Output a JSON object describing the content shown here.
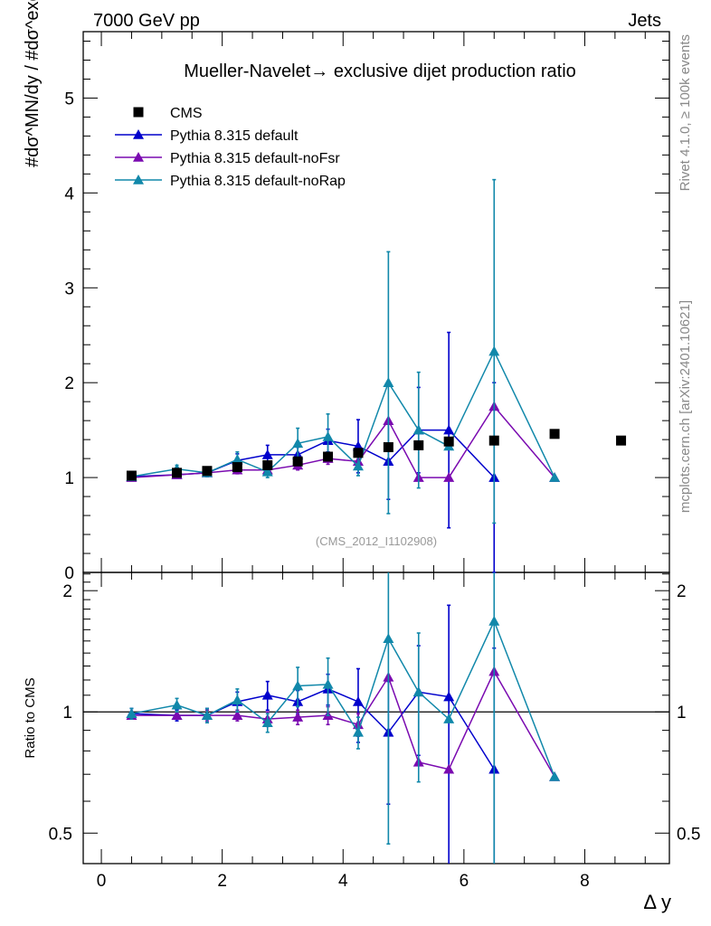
{
  "header": {
    "left_title": "7000 GeV pp",
    "right_title": "Jets"
  },
  "side": {
    "rivet": "Rivet 4.1.0, ≥ 100k events",
    "mcplots": "mcplots.cern.ch [arXiv:2401.10621]"
  },
  "chart_data": {
    "type": "scatter",
    "title": "Mueller-Navelet→ exclusive dijet production ratio",
    "watermark": "(CMS_2012_I1102908)",
    "xlabel": "Δ y",
    "ylabel": "#dσ^MN/dy / #dσ^exc/dy",
    "ratio_ylabel": "Ratio to CMS",
    "xlim": [
      -0.3,
      9.4
    ],
    "ylim": [
      0,
      5.7
    ],
    "ratio_ylim": [
      0.42,
      2.22
    ],
    "x_ticks": [
      0,
      2,
      4,
      6,
      8
    ],
    "x_tick_labels": [
      "0",
      "2",
      "4",
      "6",
      "8"
    ],
    "y_ticks": [
      0,
      1,
      2,
      3,
      4,
      5
    ],
    "y_tick_labels": [
      "0",
      "1",
      "2",
      "3",
      "4",
      "5"
    ],
    "ratio_y_ticks": [
      0.5,
      1,
      2
    ],
    "ratio_y_tick_labels": [
      "0.5",
      "1",
      "2"
    ],
    "legend_position": "top-left",
    "colors": {
      "cms": "#000000",
      "default": "#0000cc",
      "noFsr": "#7a0ab0",
      "noRap": "#1188aa"
    },
    "cms": {
      "name": "CMS",
      "x": [
        0.5,
        1.25,
        1.75,
        2.25,
        2.75,
        3.25,
        3.75,
        4.25,
        4.75,
        5.25,
        5.75,
        6.5,
        7.5,
        8.6
      ],
      "y": [
        1.02,
        1.05,
        1.07,
        1.11,
        1.13,
        1.17,
        1.22,
        1.26,
        1.32,
        1.34,
        1.38,
        1.39,
        1.46,
        1.39
      ]
    },
    "series": [
      {
        "name": "Pythia 8.315 default",
        "color_key": "default",
        "x": [
          0.5,
          1.25,
          1.75,
          2.25,
          2.75,
          3.25,
          3.75,
          4.25,
          4.75,
          5.25,
          5.75,
          6.5
        ],
        "y": [
          1.01,
          1.03,
          1.05,
          1.18,
          1.24,
          1.24,
          1.39,
          1.33,
          1.17,
          1.5,
          1.5,
          1.0
        ],
        "err": [
          0.03,
          0.03,
          0.04,
          0.07,
          0.1,
          0.08,
          0.12,
          0.28,
          0.4,
          0.45,
          1.03,
          1.0
        ],
        "ratio": [
          0.99,
          0.98,
          0.98,
          1.06,
          1.1,
          1.06,
          1.14,
          1.06,
          0.89,
          1.12,
          1.09,
          0.72
        ],
        "ratio_err": [
          0.03,
          0.03,
          0.04,
          0.06,
          0.09,
          0.07,
          0.1,
          0.22,
          0.3,
          0.34,
          0.75,
          0.72
        ]
      },
      {
        "name": "Pythia 8.315 default-noFsr",
        "color_key": "noFsr",
        "x": [
          0.5,
          1.25,
          1.75,
          2.25,
          2.75,
          3.25,
          3.75,
          4.25,
          4.75,
          5.25,
          5.75,
          6.5,
          7.5
        ],
        "y": [
          1.0,
          1.03,
          1.05,
          1.08,
          1.08,
          1.13,
          1.2,
          1.17,
          1.6,
          1.0,
          1.0,
          1.75,
          1.0
        ],
        "err": [
          0.02,
          0.02,
          0.03,
          0.04,
          0.05,
          0.05,
          0.06,
          0.08,
          0.0,
          0.0,
          0.0,
          0.0,
          0.0
        ],
        "ratio": [
          0.98,
          0.98,
          0.98,
          0.98,
          0.96,
          0.97,
          0.98,
          0.93,
          1.22,
          0.75,
          0.72,
          1.26,
          0.69
        ],
        "ratio_err": [
          0.02,
          0.02,
          0.03,
          0.03,
          0.04,
          0.04,
          0.05,
          0.06,
          0.0,
          0.0,
          0.0,
          0.0,
          0.0
        ]
      },
      {
        "name": "Pythia 8.315 default-noRap",
        "color_key": "noRap",
        "x": [
          0.5,
          1.25,
          1.75,
          2.25,
          2.75,
          3.25,
          3.75,
          4.25,
          4.75,
          5.25,
          5.75,
          6.5,
          7.5
        ],
        "y": [
          1.01,
          1.09,
          1.05,
          1.19,
          1.06,
          1.36,
          1.43,
          1.12,
          2.0,
          1.5,
          1.33,
          2.33,
          1.0
        ],
        "err": [
          0.03,
          0.04,
          0.04,
          0.08,
          0.06,
          0.16,
          0.24,
          0.1,
          1.38,
          0.61,
          0.0,
          1.81,
          0.0
        ],
        "ratio": [
          0.99,
          1.04,
          0.98,
          1.07,
          0.94,
          1.16,
          1.17,
          0.89,
          1.52,
          1.12,
          0.96,
          1.68,
          0.69
        ],
        "ratio_err": [
          0.03,
          0.04,
          0.04,
          0.07,
          0.05,
          0.13,
          0.19,
          0.08,
          1.05,
          0.45,
          0.0,
          1.3,
          0.0
        ]
      }
    ]
  }
}
